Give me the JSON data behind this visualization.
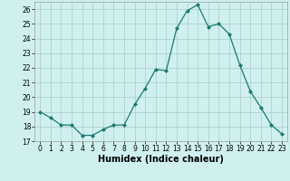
{
  "x": [
    0,
    1,
    2,
    3,
    4,
    5,
    6,
    7,
    8,
    9,
    10,
    11,
    12,
    13,
    14,
    15,
    16,
    17,
    18,
    19,
    20,
    21,
    22,
    23
  ],
  "y": [
    19.0,
    18.6,
    18.1,
    18.1,
    17.4,
    17.4,
    17.8,
    18.1,
    18.1,
    19.5,
    20.6,
    21.9,
    21.8,
    24.7,
    25.9,
    26.3,
    24.8,
    25.0,
    24.3,
    22.2,
    20.4,
    19.3,
    18.1,
    17.5
  ],
  "line_color": "#1a7a6e",
  "marker": "D",
  "marker_size": 2,
  "bg_color": "#d0f0f0",
  "grid_color": "#b0d0d0",
  "xlabel": "Humidex (Indice chaleur)",
  "xlim": [
    -0.5,
    23.5
  ],
  "ylim": [
    17,
    26.5
  ],
  "yticks": [
    17,
    18,
    19,
    20,
    21,
    22,
    23,
    24,
    25,
    26
  ],
  "xticks": [
    0,
    1,
    2,
    3,
    4,
    5,
    6,
    7,
    8,
    9,
    10,
    11,
    12,
    13,
    14,
    15,
    16,
    17,
    18,
    19,
    20,
    21,
    22,
    23
  ],
  "tick_fontsize": 5.5,
  "label_fontsize": 7
}
